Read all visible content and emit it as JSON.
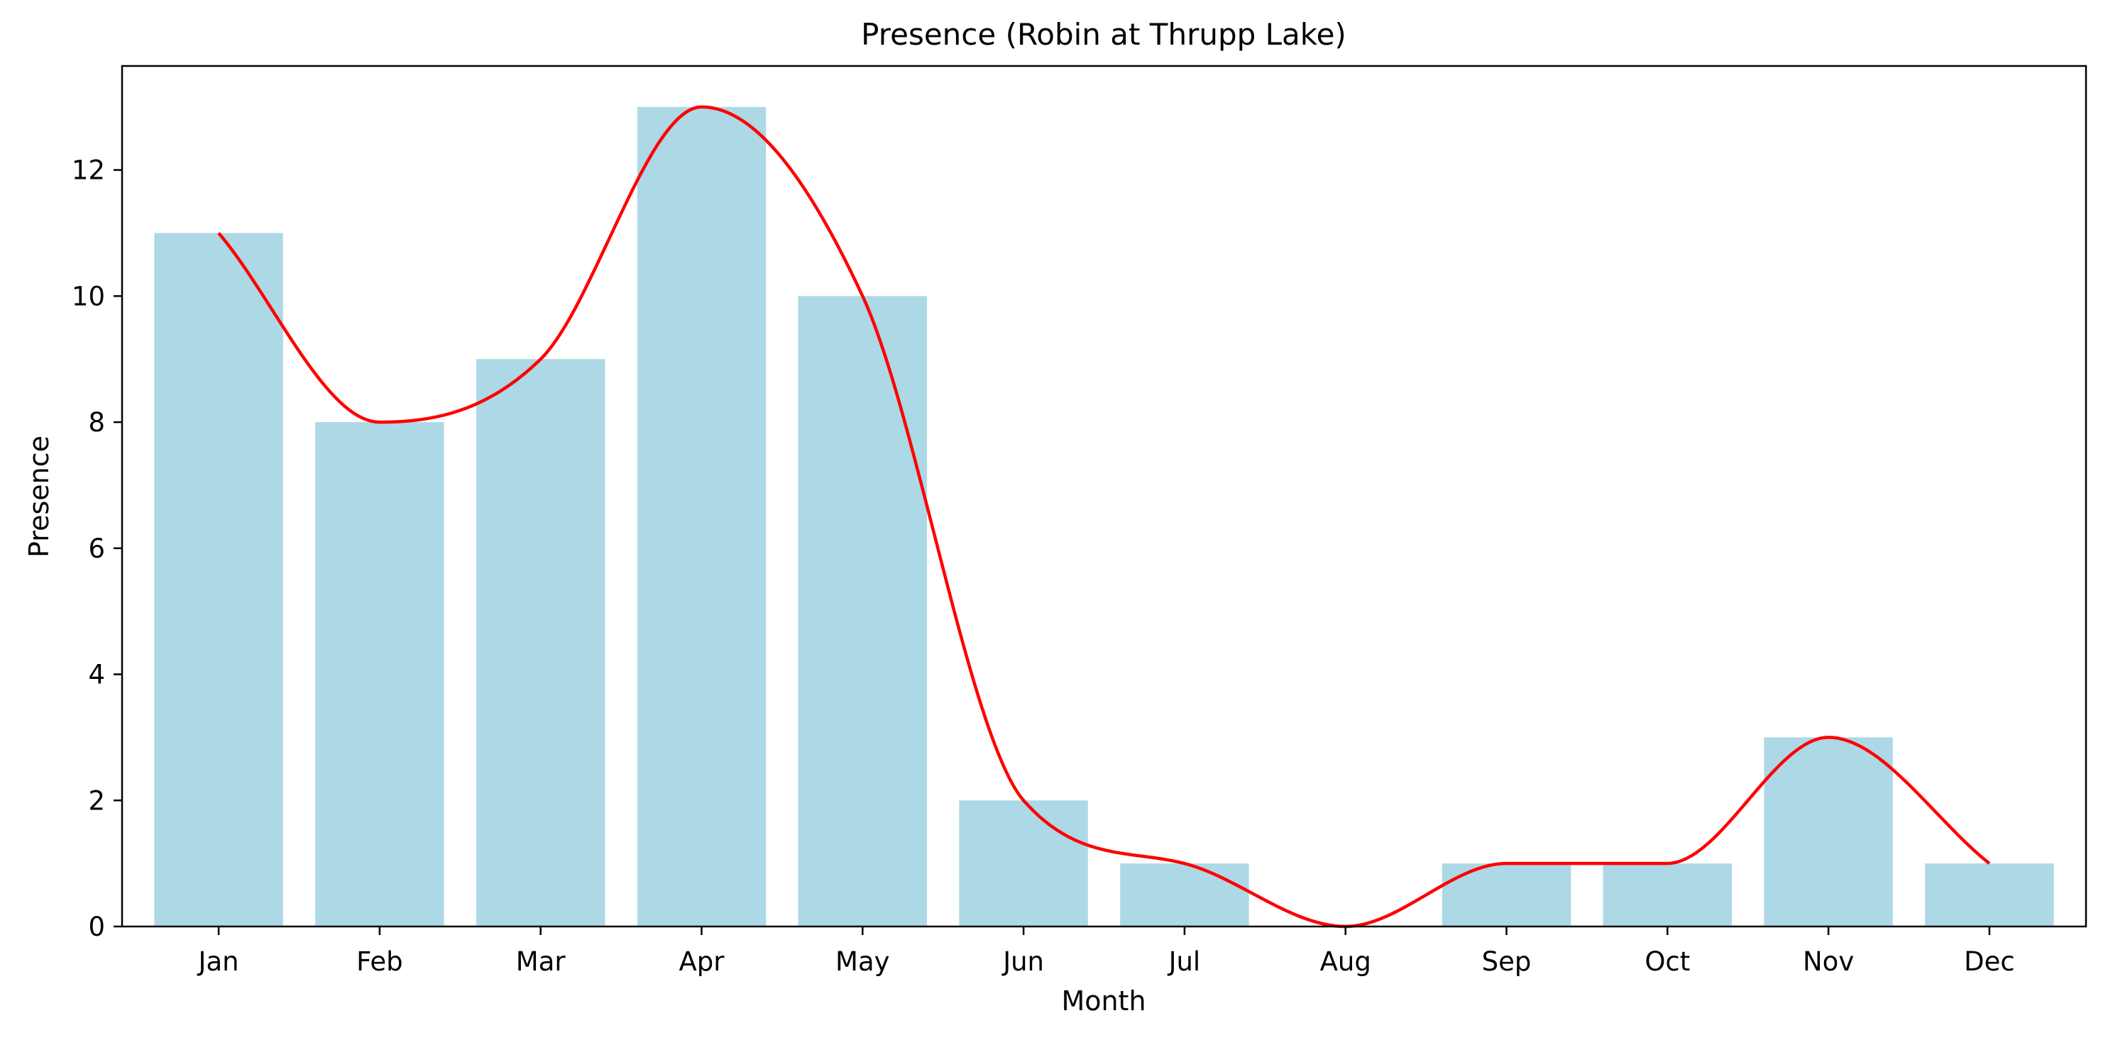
{
  "chart_data": {
    "type": "bar",
    "title": "Presence (Robin at Thrupp Lake)",
    "xlabel": "Month",
    "ylabel": "Presence",
    "categories": [
      "Jan",
      "Feb",
      "Mar",
      "Apr",
      "May",
      "Jun",
      "Jul",
      "Aug",
      "Sep",
      "Oct",
      "Nov",
      "Dec"
    ],
    "values": [
      11,
      8,
      9,
      13,
      10,
      2,
      1,
      0,
      1,
      1,
      3,
      1
    ],
    "overlay_line": {
      "type": "smooth-line",
      "values": [
        11,
        8,
        9,
        13,
        10,
        2,
        1,
        0,
        1,
        1,
        3,
        1
      ]
    },
    "ylim": [
      0,
      13.65
    ],
    "yticks": [
      0,
      2,
      4,
      6,
      8,
      10,
      12
    ],
    "grid": false,
    "legend": "none",
    "colors": {
      "bar": "#add8e6",
      "line": "#ff0000",
      "axes": "#000000"
    }
  }
}
